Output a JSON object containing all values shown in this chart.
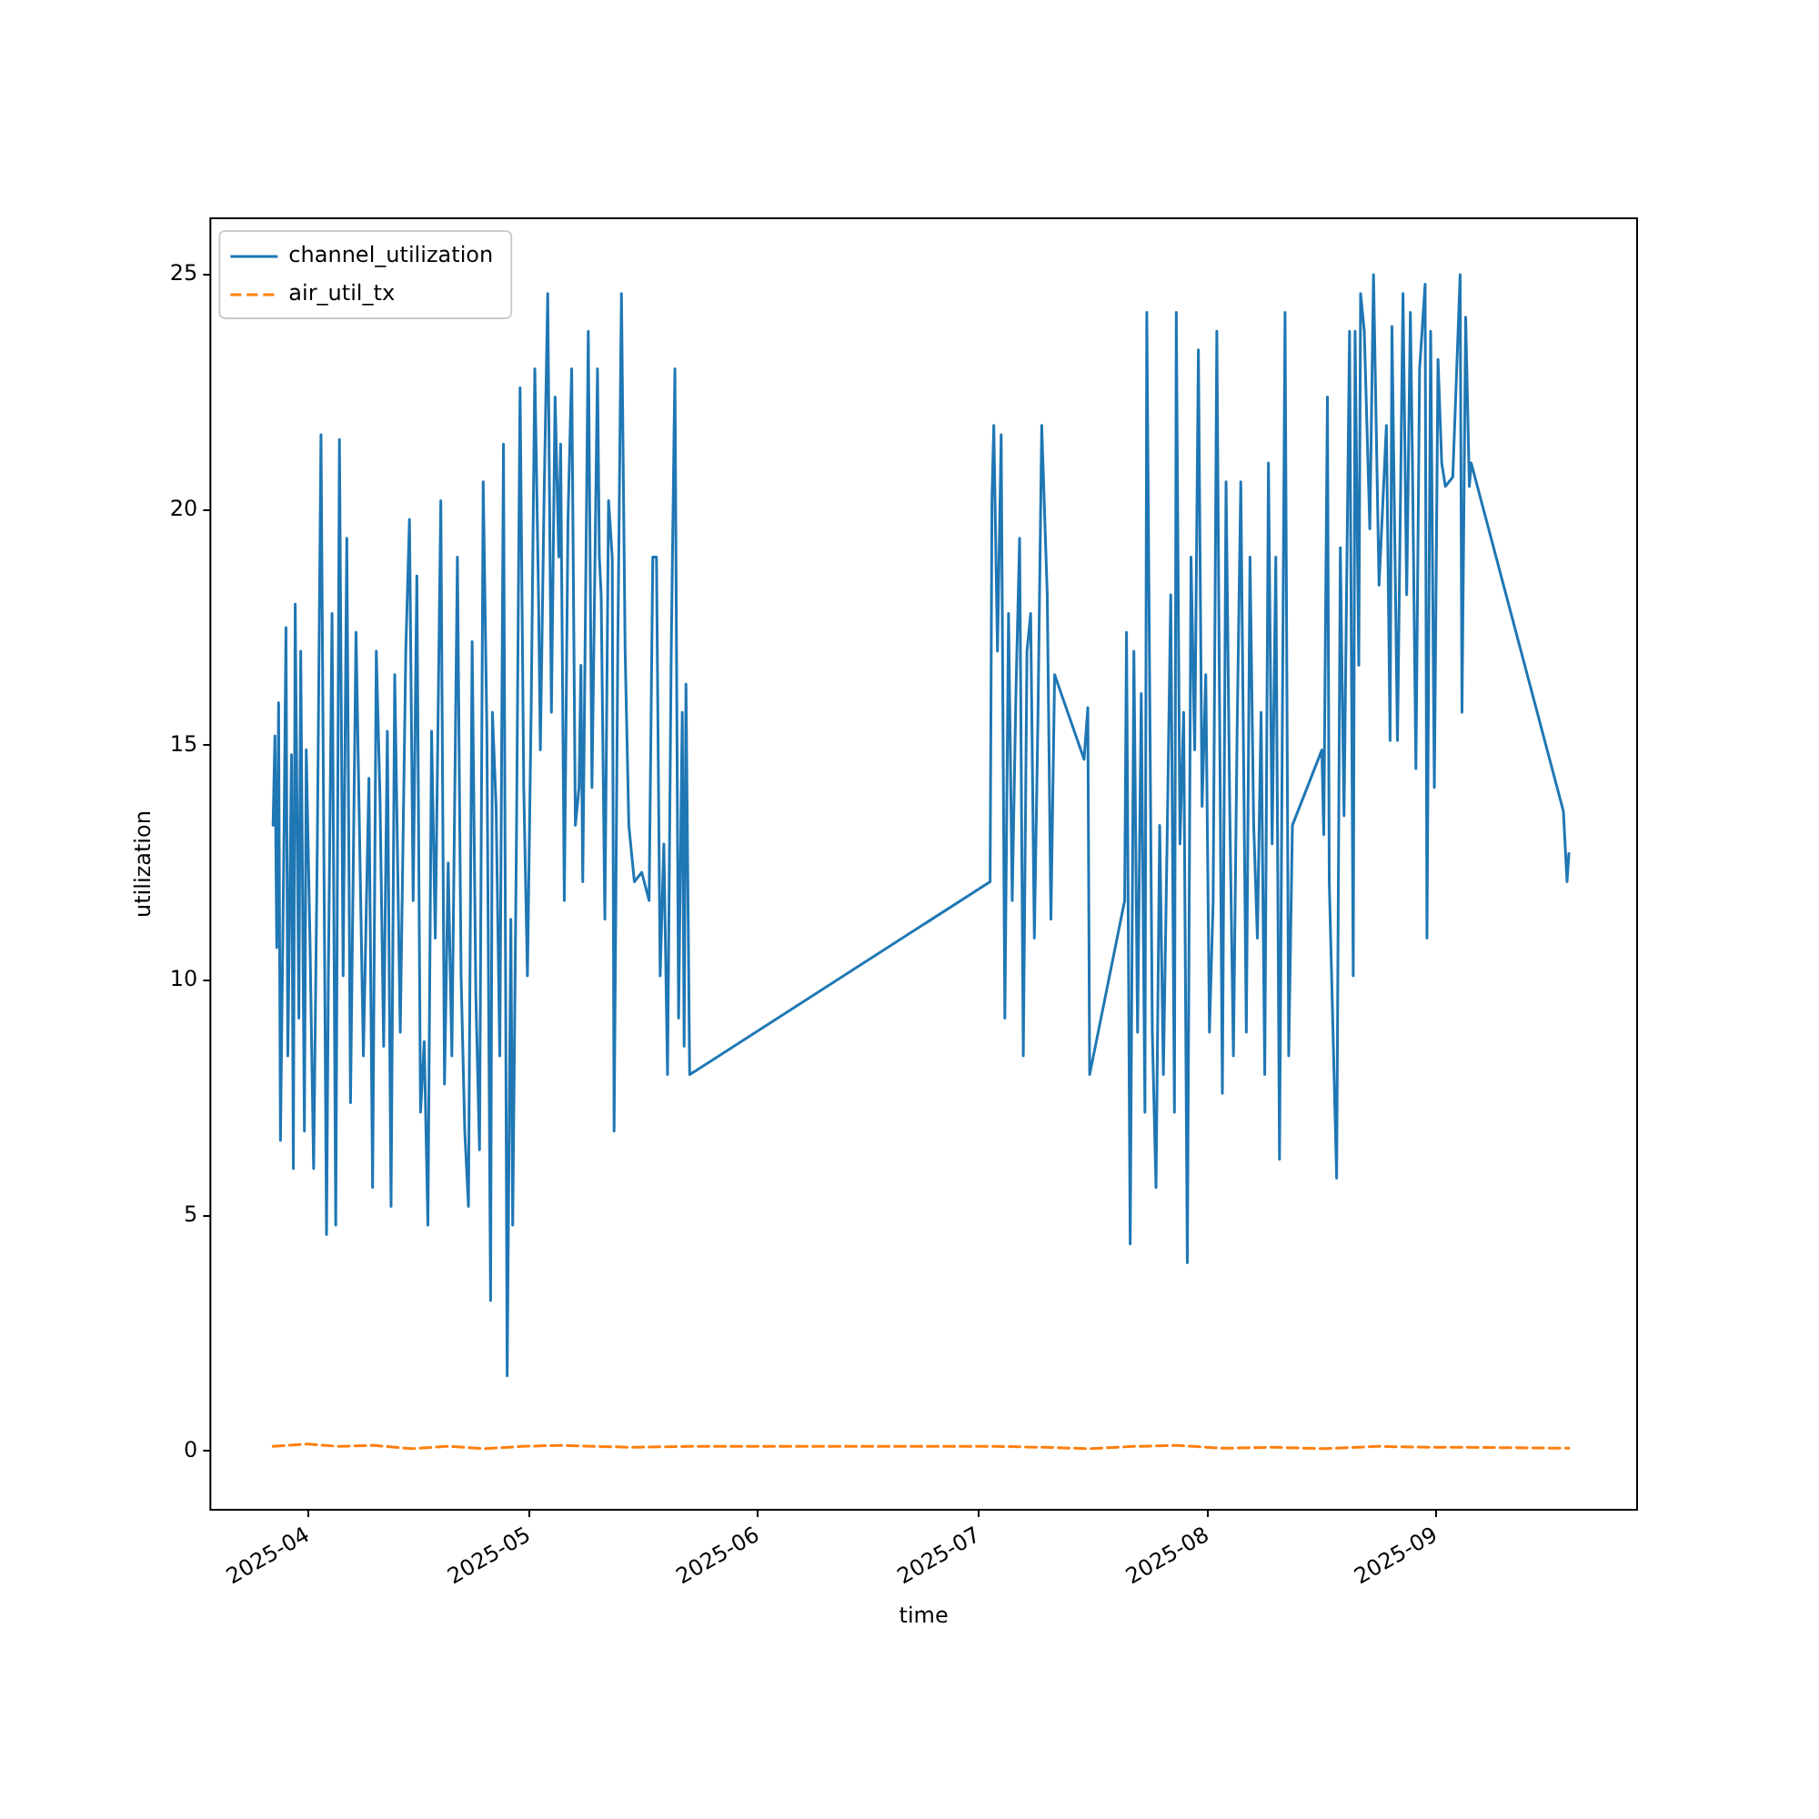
{
  "chart_data": {
    "type": "line",
    "xlabel": "time",
    "ylabel": "utilization",
    "legend": "top left",
    "grid": false,
    "marker": "none",
    "xlim": [
      "2025-03-18T18:00",
      "2025-09-28T06:00"
    ],
    "xticks": [
      {
        "value": "2025-04-01",
        "label": "2025-04"
      },
      {
        "value": "2025-05-01",
        "label": "2025-05"
      },
      {
        "value": "2025-06-01",
        "label": "2025-06"
      },
      {
        "value": "2025-07-01",
        "label": "2025-07"
      },
      {
        "value": "2025-08-01",
        "label": "2025-08"
      },
      {
        "value": "2025-09-01",
        "label": "2025-09"
      }
    ],
    "ylim": [
      -1.25,
      26.2
    ],
    "yticks": [
      0,
      5,
      10,
      15,
      20,
      25
    ],
    "series": [
      {
        "name": "channel_utilization",
        "color": "#1f77b4",
        "line_style": "solid",
        "x": [
          "2025-03-27T06:00",
          "2025-03-27T12:00",
          "2025-03-27T18:00",
          "2025-03-28T00:00",
          "2025-03-28T06:00",
          "2025-03-28T18:00",
          "2025-03-29T00:00",
          "2025-03-29T06:00",
          "2025-03-29T18:00",
          "2025-03-30T00:00",
          "2025-03-30T06:00",
          "2025-03-30T18:00",
          "2025-03-31T00:00",
          "2025-03-31T12:00",
          "2025-03-31T18:00",
          "2025-04-01T06:00",
          "2025-04-01T18:00",
          "2025-04-02T06:00",
          "2025-04-02T18:00",
          "2025-04-03T12:00",
          "2025-04-03T18:00",
          "2025-04-04T06:00",
          "2025-04-04T18:00",
          "2025-04-05T06:00",
          "2025-04-05T18:00",
          "2025-04-06T06:00",
          "2025-04-06T18:00",
          "2025-04-07T12:00",
          "2025-04-08T00:00",
          "2025-04-08T12:00",
          "2025-04-09T06:00",
          "2025-04-09T18:00",
          "2025-04-10T06:00",
          "2025-04-10T18:00",
          "2025-04-11T06:00",
          "2025-04-11T18:00",
          "2025-04-12T06:00",
          "2025-04-12T18:00",
          "2025-04-13T12:00",
          "2025-04-14T06:00",
          "2025-04-14T18:00",
          "2025-04-15T06:00",
          "2025-04-15T18:00",
          "2025-04-16T06:00",
          "2025-04-16T18:00",
          "2025-04-17T06:00",
          "2025-04-17T18:00",
          "2025-04-18T06:00",
          "2025-04-19T00:00",
          "2025-04-19T12:00",
          "2025-04-20T00:00",
          "2025-04-20T12:00",
          "2025-04-21T06:00",
          "2025-04-21T18:00",
          "2025-04-22T06:00",
          "2025-04-22T18:00",
          "2025-04-23T06:00",
          "2025-04-23T18:00",
          "2025-04-24T06:00",
          "2025-04-24T18:00",
          "2025-04-25T06:00",
          "2025-04-25T18:00",
          "2025-04-26T00:00",
          "2025-04-26T12:00",
          "2025-04-27T00:00",
          "2025-04-27T12:00",
          "2025-04-28T00:00",
          "2025-04-28T12:00",
          "2025-04-28T18:00",
          "2025-04-29T06:00",
          "2025-04-29T18:00",
          "2025-04-30T06:00",
          "2025-04-30T18:00",
          "2025-05-01T06:00",
          "2025-05-01T18:00",
          "2025-05-02T06:00",
          "2025-05-02T12:00",
          "2025-05-03T00:00",
          "2025-05-03T12:00",
          "2025-05-04T00:00",
          "2025-05-04T12:00",
          "2025-05-05T00:00",
          "2025-05-05T06:00",
          "2025-05-05T18:00",
          "2025-05-06T06:00",
          "2025-05-06T18:00",
          "2025-05-07T06:00",
          "2025-05-07T18:00",
          "2025-05-08T00:00",
          "2025-05-08T06:00",
          "2025-05-09T00:00",
          "2025-05-09T12:00",
          "2025-05-09T18:00",
          "2025-05-10T06:00",
          "2025-05-10T12:00",
          "2025-05-10T18:00",
          "2025-05-11T06:00",
          "2025-05-11T18:00",
          "2025-05-12T06:00",
          "2025-05-12T12:00",
          "2025-05-13T00:00",
          "2025-05-13T12:00",
          "2025-05-14T00:00",
          "2025-05-14T12:00",
          "2025-05-15T06:00",
          "2025-05-16T06:00",
          "2025-05-17T06:00",
          "2025-05-17T18:00",
          "2025-05-18T06:00",
          "2025-05-18T18:00",
          "2025-05-19T06:00",
          "2025-05-19T18:00",
          "2025-05-20T06:00",
          "2025-05-20T18:00",
          "2025-05-21T06:00",
          "2025-05-21T18:00",
          "2025-05-22T00:00",
          "2025-05-22T06:00",
          "2025-05-22T18:00",
          "2025-07-02T12:00",
          "2025-07-02T18:00",
          "2025-07-03T00:00",
          "2025-07-03T12:00",
          "2025-07-04T00:00",
          "2025-07-04T12:00",
          "2025-07-05T00:00",
          "2025-07-05T12:00",
          "2025-07-06T00:00",
          "2025-07-06T12:00",
          "2025-07-07T00:00",
          "2025-07-07T12:00",
          "2025-07-08T00:00",
          "2025-07-08T12:00",
          "2025-07-09T00:00",
          "2025-07-09T12:00",
          "2025-07-10T06:00",
          "2025-07-10T18:00",
          "2025-07-11T06:00",
          "2025-07-15T06:00",
          "2025-07-15T18:00",
          "2025-07-16T00:00",
          "2025-07-20T18:00",
          "2025-07-21T00:00",
          "2025-07-21T12:00",
          "2025-07-22T00:00",
          "2025-07-22T12:00",
          "2025-07-23T00:00",
          "2025-07-23T12:00",
          "2025-07-23T18:00",
          "2025-07-24T12:00",
          "2025-07-25T00:00",
          "2025-07-25T12:00",
          "2025-07-26T00:00",
          "2025-07-26T12:00",
          "2025-07-27T00:00",
          "2025-07-27T12:00",
          "2025-07-27T18:00",
          "2025-07-28T06:00",
          "2025-07-28T18:00",
          "2025-07-29T06:00",
          "2025-07-29T18:00",
          "2025-07-30T06:00",
          "2025-07-30T18:00",
          "2025-07-31T06:00",
          "2025-07-31T18:00",
          "2025-08-01T06:00",
          "2025-08-01T18:00",
          "2025-08-02T06:00",
          "2025-08-03T00:00",
          "2025-08-03T12:00",
          "2025-08-04T00:00",
          "2025-08-04T12:00",
          "2025-08-05T00:00",
          "2025-08-05T12:00",
          "2025-08-06T06:00",
          "2025-08-06T18:00",
          "2025-08-07T06:00",
          "2025-08-07T18:00",
          "2025-08-08T06:00",
          "2025-08-08T18:00",
          "2025-08-09T06:00",
          "2025-08-09T18:00",
          "2025-08-10T06:00",
          "2025-08-10T18:00",
          "2025-08-11T12:00",
          "2025-08-12T00:00",
          "2025-08-12T12:00",
          "2025-08-16T12:00",
          "2025-08-16T18:00",
          "2025-08-17T06:00",
          "2025-08-17T12:00",
          "2025-08-18T12:00",
          "2025-08-19T00:00",
          "2025-08-19T12:00",
          "2025-08-20T06:00",
          "2025-08-20T18:00",
          "2025-08-21T00:00",
          "2025-08-21T12:00",
          "2025-08-21T18:00",
          "2025-08-22T06:00",
          "2025-08-22T18:00",
          "2025-08-23T00:00",
          "2025-08-23T12:00",
          "2025-08-24T06:00",
          "2025-08-25T06:00",
          "2025-08-25T18:00",
          "2025-08-26T00:00",
          "2025-08-26T18:00",
          "2025-08-27T12:00",
          "2025-08-28T00:00",
          "2025-08-28T12:00",
          "2025-08-28T18:00",
          "2025-08-29T06:00",
          "2025-08-29T18:00",
          "2025-08-30T12:00",
          "2025-08-30T18:00",
          "2025-08-31T06:00",
          "2025-08-31T18:00",
          "2025-09-01T06:00",
          "2025-09-01T18:00",
          "2025-09-02T06:00",
          "2025-09-03T06:00",
          "2025-09-04T06:00",
          "2025-09-04T12:00",
          "2025-09-05T00:00",
          "2025-09-05T12:00",
          "2025-09-05T18:00",
          "2025-09-18T06:00",
          "2025-09-18T18:00",
          "2025-09-19T00:00"
        ],
        "values": [
          13.3,
          15.2,
          10.7,
          15.9,
          6.6,
          13.3,
          17.5,
          8.4,
          14.8,
          6.0,
          18.0,
          9.2,
          17.0,
          6.8,
          14.9,
          10.9,
          6.0,
          12.9,
          21.6,
          4.6,
          10.1,
          17.8,
          4.8,
          21.5,
          10.1,
          19.4,
          7.4,
          17.4,
          12.9,
          8.4,
          14.3,
          5.6,
          17.0,
          13.9,
          8.6,
          15.3,
          5.2,
          16.5,
          8.9,
          17.0,
          19.8,
          11.7,
          18.6,
          7.2,
          8.7,
          4.8,
          15.3,
          10.9,
          20.2,
          7.8,
          12.5,
          8.4,
          19.0,
          10.1,
          6.8,
          5.2,
          17.2,
          9.7,
          6.4,
          20.6,
          15.3,
          3.2,
          15.7,
          13.7,
          8.4,
          21.4,
          1.6,
          11.3,
          4.8,
          12.9,
          22.6,
          14.1,
          10.1,
          15.7,
          23.0,
          18.2,
          14.9,
          20.2,
          24.6,
          15.7,
          22.4,
          19.0,
          21.4,
          11.7,
          19.8,
          23.0,
          13.3,
          14.1,
          16.7,
          12.1,
          23.8,
          14.1,
          17.0,
          23.0,
          19.0,
          18.2,
          11.3,
          20.2,
          19.0,
          6.8,
          17.0,
          24.6,
          17.0,
          13.3,
          12.1,
          12.3,
          11.7,
          19.0,
          19.0,
          10.1,
          12.9,
          8.0,
          17.0,
          23.0,
          9.2,
          15.7,
          8.6,
          16.3,
          8.0,
          12.1,
          20.2,
          21.8,
          17.0,
          21.6,
          9.2,
          17.8,
          11.7,
          16.1,
          19.4,
          8.4,
          17.0,
          17.8,
          10.9,
          15.7,
          21.8,
          18.2,
          11.3,
          16.5,
          14.7,
          15.8,
          8.0,
          11.7,
          17.4,
          4.4,
          17.0,
          8.9,
          16.1,
          7.2,
          24.2,
          8.9,
          5.6,
          13.3,
          8.0,
          12.9,
          18.2,
          7.2,
          24.2,
          12.9,
          15.7,
          4.0,
          19.0,
          14.9,
          23.4,
          13.7,
          16.5,
          8.9,
          11.7,
          23.8,
          7.6,
          20.6,
          13.7,
          8.4,
          15.3,
          20.6,
          8.9,
          19.0,
          13.3,
          10.9,
          15.7,
          8.0,
          21.0,
          12.9,
          19.0,
          6.2,
          24.2,
          8.4,
          13.3,
          14.9,
          13.1,
          22.4,
          12.1,
          5.8,
          19.2,
          13.5,
          23.8,
          10.1,
          23.8,
          16.7,
          24.6,
          23.8,
          21.0,
          19.6,
          25.0,
          18.4,
          21.8,
          15.1,
          23.9,
          15.1,
          24.6,
          18.2,
          24.2,
          21.4,
          14.5,
          23.0,
          24.8,
          10.9,
          23.8,
          14.1,
          23.2,
          21.0,
          20.5,
          20.7,
          25.0,
          15.7,
          24.1,
          20.5,
          21.0,
          13.6,
          12.1,
          12.7
        ]
      },
      {
        "name": "air_util_tx",
        "color": "#ff7f0e",
        "line_style": "dashed",
        "x": [
          "2025-03-27T06:00",
          "2025-04-01T00:00",
          "2025-04-05T00:00",
          "2025-04-10T00:00",
          "2025-04-15T00:00",
          "2025-04-20T00:00",
          "2025-04-25T00:00",
          "2025-04-30T00:00",
          "2025-05-05T00:00",
          "2025-05-10T00:00",
          "2025-05-15T00:00",
          "2025-05-22T18:00",
          "2025-07-03T00:00",
          "2025-07-10T00:00",
          "2025-07-16T00:00",
          "2025-07-22T00:00",
          "2025-07-28T00:00",
          "2025-08-03T00:00",
          "2025-08-10T00:00",
          "2025-08-17T00:00",
          "2025-08-24T00:00",
          "2025-08-31T00:00",
          "2025-09-05T00:00",
          "2025-09-19T00:00"
        ],
        "values": [
          0.1,
          0.15,
          0.1,
          0.12,
          0.05,
          0.1,
          0.05,
          0.1,
          0.12,
          0.1,
          0.08,
          0.1,
          0.1,
          0.08,
          0.05,
          0.1,
          0.12,
          0.06,
          0.08,
          0.05,
          0.1,
          0.08,
          0.08,
          0.06
        ]
      }
    ]
  }
}
